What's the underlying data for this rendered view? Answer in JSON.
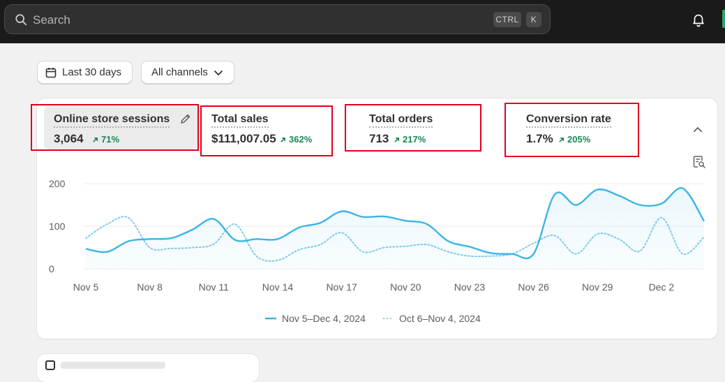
{
  "topbar": {
    "search": {
      "placeholder": "Search",
      "value": ""
    },
    "shortcut": {
      "ctrl": "CTRL",
      "key": "K"
    }
  },
  "filters": {
    "date_range": "Last 30 days",
    "channel": "All channels"
  },
  "metrics": [
    {
      "label": "Online store sessions",
      "value": "3,064",
      "change": "71%"
    },
    {
      "label": "Total sales",
      "value": "$111,007.05",
      "change": "362%"
    },
    {
      "label": "Total orders",
      "value": "713",
      "change": "217%"
    },
    {
      "label": "Conversion rate",
      "value": "1.7%",
      "change": "205%"
    }
  ],
  "colors": {
    "current_series": "#3ab5e6",
    "comparison_series": "#7fcbec",
    "positive_change": "#1a8754",
    "highlight_box": "#e0001b"
  },
  "chart_data": {
    "type": "line",
    "x": [
      "Nov 5",
      "Nov 6",
      "Nov 7",
      "Nov 8",
      "Nov 9",
      "Nov 10",
      "Nov 11",
      "Nov 12",
      "Nov 13",
      "Nov 14",
      "Nov 15",
      "Nov 16",
      "Nov 17",
      "Nov 18",
      "Nov 19",
      "Nov 20",
      "Nov 21",
      "Nov 22",
      "Nov 23",
      "Nov 24",
      "Nov 25",
      "Nov 26",
      "Nov 27",
      "Nov 28",
      "Nov 29",
      "Nov 30",
      "Dec 1",
      "Dec 2",
      "Dec 3",
      "Dec 4"
    ],
    "tick_labels": [
      "Nov 5",
      "Nov 8",
      "Nov 11",
      "Nov 14",
      "Nov 17",
      "Nov 20",
      "Nov 23",
      "Nov 26",
      "Nov 29",
      "Dec 2"
    ],
    "y_ticks": [
      0,
      100,
      200
    ],
    "ylim": [
      0,
      200
    ],
    "grid": true,
    "legend_position": "bottom-center",
    "series": [
      {
        "name": "Nov 5–Dec 4, 2024",
        "style": "solid",
        "values": [
          47,
          40,
          65,
          70,
          72,
          92,
          117,
          68,
          70,
          70,
          97,
          108,
          135,
          122,
          123,
          113,
          105,
          65,
          52,
          37,
          35,
          35,
          175,
          150,
          186,
          172,
          150,
          153,
          189,
          112
        ]
      },
      {
        "name": "Oct 6–Nov 4, 2024",
        "style": "dotted",
        "values": [
          72,
          105,
          120,
          50,
          48,
          50,
          58,
          105,
          30,
          20,
          45,
          57,
          85,
          40,
          50,
          53,
          57,
          40,
          30,
          30,
          35,
          60,
          78,
          35,
          82,
          70,
          42,
          120,
          35,
          75
        ]
      }
    ]
  }
}
